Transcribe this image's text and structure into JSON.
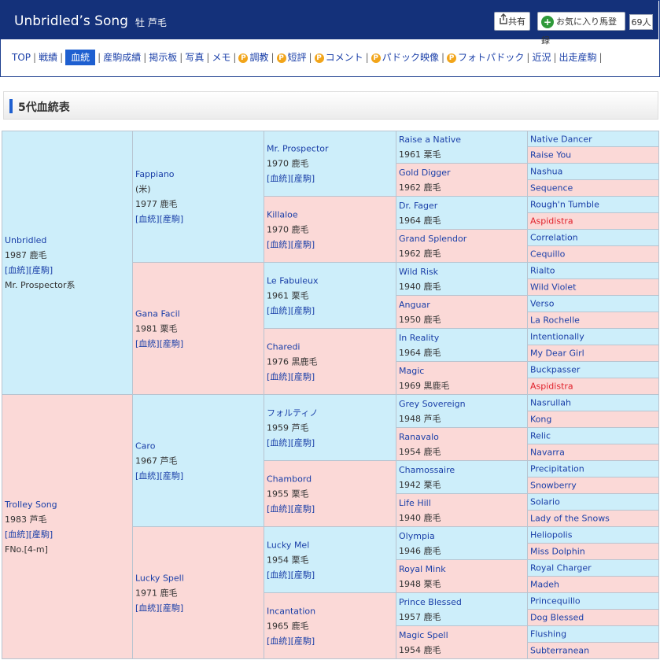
{
  "header": {
    "title": "Unbridled’s Song",
    "subtitle": "牡 芦毛",
    "share_label": "共有",
    "fav_label": "お気に入り馬登録",
    "fav_count": "69人",
    "icons": {
      "share": "share-icon",
      "fav": "plus-circle-icon"
    },
    "colors": {
      "bar": "#14317a",
      "active_tab": "#1e5fd0",
      "male_bg": "#cdeefa",
      "female_bg": "#fbd9d7"
    }
  },
  "nav": [
    {
      "label": "TOP",
      "p": false
    },
    {
      "label": "戦績",
      "p": false
    },
    {
      "label": "血統",
      "p": false,
      "active": true
    },
    {
      "label": "産駒成績",
      "p": false
    },
    {
      "label": "掲示板",
      "p": false
    },
    {
      "label": "写真",
      "p": false
    },
    {
      "label": "メモ",
      "p": false
    },
    {
      "label": "調教",
      "p": true
    },
    {
      "label": "短評",
      "p": true
    },
    {
      "label": "コメント",
      "p": true
    },
    {
      "label": "パドック映像",
      "p": true
    },
    {
      "label": "フォトパドック",
      "p": true
    },
    {
      "label": "近況",
      "p": false
    },
    {
      "label": "出走産駒",
      "p": false
    }
  ],
  "p_icon_label": "P",
  "section_title": "5代血統表",
  "links": {
    "blood": "[血統]",
    "progeny": "[産駒]"
  },
  "gen1": [
    {
      "name": "Unbridled",
      "year": "1987 鹿毛",
      "extra": "Mr. Prospector系"
    },
    {
      "name": "Trolley Song",
      "year": "1983 芦毛",
      "extra": "FNo.[4-m]"
    }
  ],
  "gen2": [
    {
      "name": "Fappiano",
      "origin": "(米)",
      "year": "1977 鹿毛"
    },
    {
      "name": "Gana Facil",
      "year": "1981 栗毛"
    },
    {
      "name": "Caro",
      "year": "1967 芦毛"
    },
    {
      "name": "Lucky Spell",
      "year": "1971 鹿毛"
    }
  ],
  "gen3": [
    {
      "name": "Mr. Prospector",
      "year": "1970 鹿毛"
    },
    {
      "name": "Killaloe",
      "year": "1970 鹿毛"
    },
    {
      "name": "Le Fabuleux",
      "year": "1961 栗毛"
    },
    {
      "name": "Charedi",
      "year": "1976 黒鹿毛"
    },
    {
      "name": "フォルティノ",
      "year": "1959 芦毛"
    },
    {
      "name": "Chambord",
      "year": "1955 栗毛"
    },
    {
      "name": "Lucky Mel",
      "year": "1954 栗毛"
    },
    {
      "name": "Incantation",
      "year": "1965 鹿毛"
    }
  ],
  "gen4": [
    {
      "name": "Raise a Native",
      "year": "1961 栗毛"
    },
    {
      "name": "Gold Digger",
      "year": "1962 鹿毛"
    },
    {
      "name": "Dr. Fager",
      "year": "1964 鹿毛"
    },
    {
      "name": "Grand Splendor",
      "year": "1962 鹿毛"
    },
    {
      "name": "Wild Risk",
      "year": "1940 鹿毛"
    },
    {
      "name": "Anguar",
      "year": "1950 鹿毛"
    },
    {
      "name": "In Reality",
      "year": "1964 鹿毛"
    },
    {
      "name": "Magic",
      "year": "1969 黒鹿毛"
    },
    {
      "name": "Grey Sovereign",
      "year": "1948 芦毛"
    },
    {
      "name": "Ranavalo",
      "year": "1954 鹿毛"
    },
    {
      "name": "Chamossaire",
      "year": "1942 栗毛"
    },
    {
      "name": "Life Hill",
      "year": "1940 鹿毛"
    },
    {
      "name": "Olympia",
      "year": "1946 鹿毛"
    },
    {
      "name": "Royal Mink",
      "year": "1948 栗毛"
    },
    {
      "name": "Prince Blessed",
      "year": "1957 鹿毛"
    },
    {
      "name": "Magic Spell",
      "year": "1954 鹿毛"
    }
  ],
  "gen5": [
    {
      "name": "Native Dancer"
    },
    {
      "name": "Raise You"
    },
    {
      "name": "Nashua"
    },
    {
      "name": "Sequence"
    },
    {
      "name": "Rough'n Tumble"
    },
    {
      "name": "Aspidistra",
      "inbred": true
    },
    {
      "name": "Correlation"
    },
    {
      "name": "Cequillo"
    },
    {
      "name": "Rialto"
    },
    {
      "name": "Wild Violet"
    },
    {
      "name": "Verso"
    },
    {
      "name": "La Rochelle"
    },
    {
      "name": "Intentionally"
    },
    {
      "name": "My Dear Girl"
    },
    {
      "name": "Buckpasser"
    },
    {
      "name": "Aspidistra",
      "inbred": true
    },
    {
      "name": "Nasrullah"
    },
    {
      "name": "Kong"
    },
    {
      "name": "Relic"
    },
    {
      "name": "Navarra"
    },
    {
      "name": "Precipitation"
    },
    {
      "name": "Snowberry"
    },
    {
      "name": "Solario"
    },
    {
      "name": "Lady of the Snows"
    },
    {
      "name": "Heliopolis"
    },
    {
      "name": "Miss Dolphin"
    },
    {
      "name": "Royal Charger"
    },
    {
      "name": "Madeh"
    },
    {
      "name": "Princequillo"
    },
    {
      "name": "Dog Blessed"
    },
    {
      "name": "Flushing"
    },
    {
      "name": "Subterranean"
    }
  ]
}
